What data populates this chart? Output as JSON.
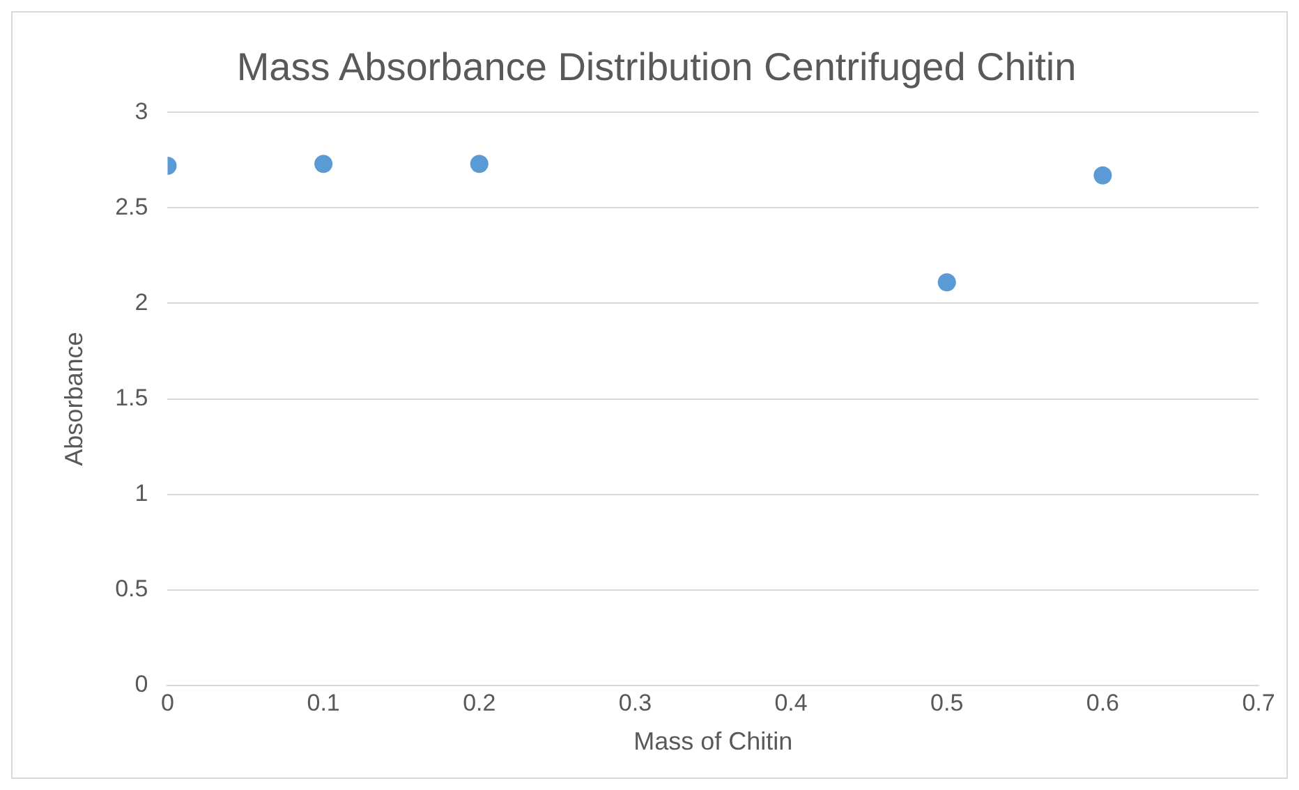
{
  "chart_data": {
    "type": "scatter",
    "title": "Mass Absorbance Distribution Centrifuged Chitin",
    "xlabel": "Mass of Chitin",
    "ylabel": "Absorbance",
    "x": [
      0,
      0.1,
      0.2,
      0.5,
      0.6
    ],
    "series": [
      {
        "color": "#5b9bd5",
        "values": [
          2.72,
          2.73,
          2.73,
          2.11,
          2.67
        ]
      }
    ],
    "xlim": [
      0,
      0.7
    ],
    "xticks": [
      0,
      0.1,
      0.2,
      0.3,
      0.4,
      0.5,
      0.6,
      0.7
    ],
    "ylim": [
      0,
      3
    ],
    "yticks": [
      0,
      0.5,
      1,
      1.5,
      2,
      2.5,
      3
    ],
    "grid": "y",
    "marker": "circle",
    "legend": false
  }
}
